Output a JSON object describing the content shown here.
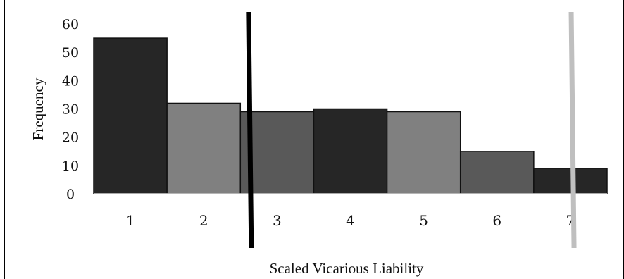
{
  "chart_data": {
    "type": "bar",
    "categories": [
      "1",
      "2",
      "3",
      "4",
      "5",
      "6",
      "7"
    ],
    "values": [
      55,
      32,
      29,
      30,
      29,
      15,
      9
    ],
    "bar_colors": [
      "#262626",
      "#808080",
      "#595959",
      "#262626",
      "#808080",
      "#595959",
      "#262626"
    ],
    "xlabel": "Scaled Vicarious Liability",
    "ylabel": "Frequency",
    "ylim": [
      0,
      60
    ],
    "yticks": [
      "0",
      "10",
      "20",
      "30",
      "40",
      "50",
      "60"
    ],
    "grid": false,
    "reference_lines": [
      {
        "x": 2.63,
        "color": "#000000",
        "style": "black-line"
      },
      {
        "x": 7.03,
        "color": "#bfbfbf",
        "style": "gray-line"
      }
    ]
  }
}
